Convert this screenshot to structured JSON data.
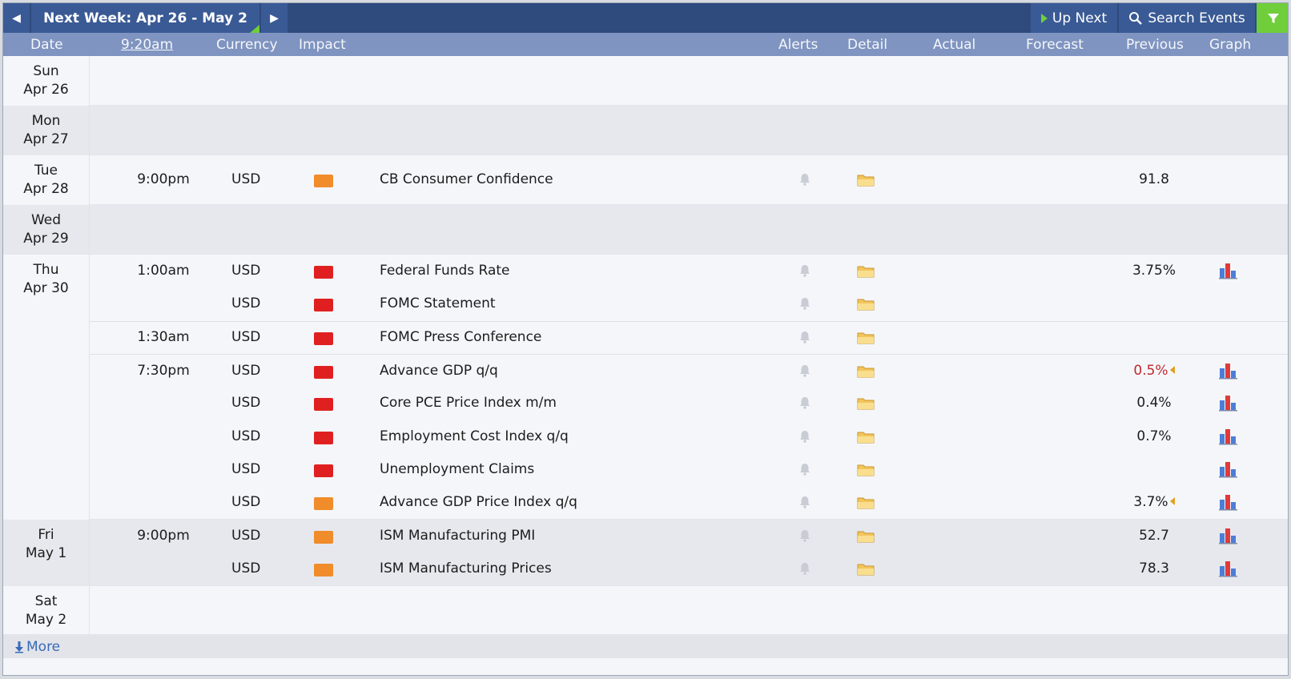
{
  "toolbar": {
    "week_label": "Next Week: Apr 26 - May 2",
    "up_next_label": "Up Next",
    "search_label": "Search Events"
  },
  "header": {
    "date": "Date",
    "time": "9:20am",
    "currency": "Currency",
    "impact": "Impact",
    "alerts": "Alerts",
    "detail": "Detail",
    "actual": "Actual",
    "forecast": "Forecast",
    "previous": "Previous",
    "graph": "Graph"
  },
  "days": [
    {
      "dow": "Sun",
      "date": "Apr 26",
      "events": []
    },
    {
      "dow": "Mon",
      "date": "Apr 27",
      "events": []
    },
    {
      "dow": "Tue",
      "date": "Apr 28",
      "events": [
        {
          "time": "9:00pm",
          "currency": "USD",
          "impact": "medium",
          "title": "CB Consumer Confidence",
          "previous": "91.8",
          "graph": false
        }
      ]
    },
    {
      "dow": "Wed",
      "date": "Apr 29",
      "events": []
    },
    {
      "dow": "Thu",
      "date": "Apr 30",
      "events": [
        {
          "time": "1:00am",
          "currency": "USD",
          "impact": "high",
          "title": "Federal Funds Rate",
          "previous": "3.75%",
          "graph": true
        },
        {
          "time": "",
          "currency": "USD",
          "impact": "high",
          "title": "FOMC Statement",
          "previous": "",
          "graph": false
        },
        {
          "time": "1:30am",
          "currency": "USD",
          "impact": "high",
          "title": "FOMC Press Conference",
          "previous": "",
          "graph": false
        },
        {
          "time": "7:30pm",
          "currency": "USD",
          "impact": "high",
          "title": "Advance GDP q/q",
          "previous": "0.5%",
          "revised": true,
          "graph": true
        },
        {
          "time": "",
          "currency": "USD",
          "impact": "high",
          "title": "Core PCE Price Index m/m",
          "previous": "0.4%",
          "graph": true
        },
        {
          "time": "",
          "currency": "USD",
          "impact": "high",
          "title": "Employment Cost Index q/q",
          "previous": "0.7%",
          "graph": true
        },
        {
          "time": "",
          "currency": "USD",
          "impact": "high",
          "title": "Unemployment Claims",
          "previous": "",
          "graph": true
        },
        {
          "time": "",
          "currency": "USD",
          "impact": "medium",
          "title": "Advance GDP Price Index q/q",
          "previous": "3.7%",
          "revised_arrow": true,
          "graph": true
        }
      ]
    },
    {
      "dow": "Fri",
      "date": "May 1",
      "events": [
        {
          "time": "9:00pm",
          "currency": "USD",
          "impact": "medium",
          "title": "ISM Manufacturing PMI",
          "previous": "52.7",
          "graph": true
        },
        {
          "time": "",
          "currency": "USD",
          "impact": "medium",
          "title": "ISM Manufacturing Prices",
          "previous": "78.3",
          "graph": true
        }
      ]
    },
    {
      "dow": "Sat",
      "date": "May 2",
      "events": []
    }
  ],
  "footer": {
    "more_label": "More"
  },
  "colors": {
    "header_bar": "#2f4a7c",
    "column_header": "#7f94c0",
    "high_impact": "#e02020",
    "medium_impact": "#f08c2a",
    "revised": "#c0282a",
    "accent_green": "#6fce3a"
  }
}
